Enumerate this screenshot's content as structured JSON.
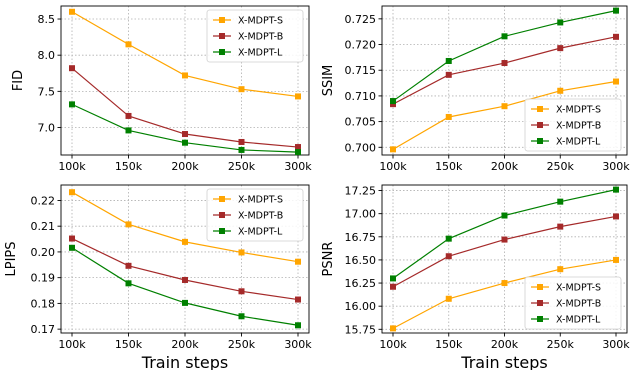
{
  "colors": {
    "S": "#FFA500",
    "B": "#A52A2A",
    "L": "#008000",
    "grid": "#b0b0b0"
  },
  "chart_data": [
    {
      "type": "line",
      "x": [
        "100k",
        "150k",
        "200k",
        "250k",
        "300k"
      ],
      "ylabel": "FID",
      "xlabel": "",
      "ylim": [
        6.62,
        8.68
      ],
      "yticks": [
        7.0,
        7.5,
        8.0,
        8.5
      ],
      "ytick_labels": [
        "7.0",
        "7.5",
        "8.0",
        "8.5"
      ],
      "grid": true,
      "legend_position": "upper right",
      "series": [
        {
          "name": "X-MDPT-S",
          "color": "#FFA500",
          "values": [
            8.6,
            8.15,
            7.72,
            7.53,
            7.43
          ]
        },
        {
          "name": "X-MDPT-B",
          "color": "#A52A2A",
          "values": [
            7.82,
            7.16,
            6.91,
            6.8,
            6.73
          ]
        },
        {
          "name": "X-MDPT-L",
          "color": "#008000",
          "values": [
            7.32,
            6.96,
            6.79,
            6.69,
            6.66
          ]
        }
      ]
    },
    {
      "type": "line",
      "x": [
        "100k",
        "150k",
        "200k",
        "250k",
        "300k"
      ],
      "ylabel": "SSIM",
      "xlabel": "",
      "ylim": [
        0.6985,
        0.7275
      ],
      "yticks": [
        0.7,
        0.705,
        0.71,
        0.715,
        0.72,
        0.725
      ],
      "ytick_labels": [
        "0.700",
        "0.705",
        "0.710",
        "0.715",
        "0.720",
        "0.725"
      ],
      "grid": true,
      "legend_position": "lower right",
      "series": [
        {
          "name": "X-MDPT-S",
          "color": "#FFA500",
          "values": [
            0.6996,
            0.7059,
            0.708,
            0.711,
            0.7128
          ]
        },
        {
          "name": "X-MDPT-B",
          "color": "#A52A2A",
          "values": [
            0.7084,
            0.7141,
            0.7164,
            0.7193,
            0.7215
          ]
        },
        {
          "name": "X-MDPT-L",
          "color": "#008000",
          "values": [
            0.709,
            0.7168,
            0.7216,
            0.7243,
            0.7266
          ]
        }
      ]
    },
    {
      "type": "line",
      "x": [
        "100k",
        "150k",
        "200k",
        "250k",
        "300k"
      ],
      "ylabel": "LPIPS",
      "xlabel": "Train steps",
      "ylim": [
        0.1685,
        0.226
      ],
      "yticks": [
        0.17,
        0.18,
        0.19,
        0.2,
        0.21,
        0.22
      ],
      "ytick_labels": [
        "0.17",
        "0.18",
        "0.19",
        "0.20",
        "0.21",
        "0.22"
      ],
      "grid": true,
      "legend_position": "upper right",
      "series": [
        {
          "name": "X-MDPT-S",
          "color": "#FFA500",
          "values": [
            0.2232,
            0.2107,
            0.2039,
            0.1998,
            0.1962
          ]
        },
        {
          "name": "X-MDPT-B",
          "color": "#A52A2A",
          "values": [
            0.2052,
            0.1946,
            0.1891,
            0.1847,
            0.1815
          ]
        },
        {
          "name": "X-MDPT-L",
          "color": "#008000",
          "values": [
            0.2016,
            0.1878,
            0.1802,
            0.175,
            0.1715
          ]
        }
      ]
    },
    {
      "type": "line",
      "x": [
        "100k",
        "150k",
        "200k",
        "250k",
        "300k"
      ],
      "ylabel": "PSNR",
      "xlabel": "Train steps",
      "ylim": [
        15.71,
        17.31
      ],
      "yticks": [
        15.75,
        16.0,
        16.25,
        16.5,
        16.75,
        17.0,
        17.25
      ],
      "ytick_labels": [
        "15.75",
        "16.00",
        "16.25",
        "16.50",
        "16.75",
        "17.00",
        "17.25"
      ],
      "grid": true,
      "legend_position": "lower right",
      "series": [
        {
          "name": "X-MDPT-S",
          "color": "#FFA500",
          "values": [
            15.76,
            16.08,
            16.25,
            16.4,
            16.5
          ]
        },
        {
          "name": "X-MDPT-B",
          "color": "#A52A2A",
          "values": [
            16.21,
            16.54,
            16.72,
            16.86,
            16.97
          ]
        },
        {
          "name": "X-MDPT-L",
          "color": "#008000",
          "values": [
            16.3,
            16.73,
            16.98,
            17.13,
            17.26
          ]
        }
      ]
    }
  ]
}
